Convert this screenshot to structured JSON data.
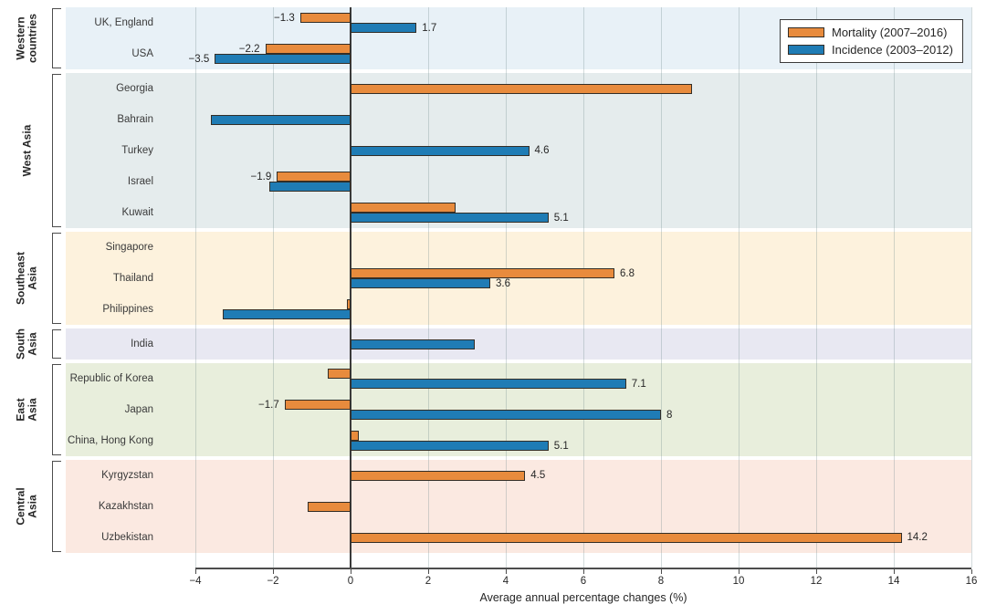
{
  "chart_data": {
    "type": "bar",
    "orientation": "horizontal",
    "xlabel": "Average annual percentage changes (%)",
    "xlim": [
      -4,
      16
    ],
    "xticks": [
      -4,
      -2,
      0,
      2,
      4,
      6,
      8,
      10,
      12,
      14,
      16
    ],
    "xtick_labels": [
      "−4",
      "−2",
      "0",
      "2",
      "4",
      "6",
      "8",
      "10",
      "12",
      "14",
      "16"
    ],
    "grid": "vertical-on",
    "legend_position": "top-right",
    "series_meta": {
      "mortality": {
        "name": "Mortality (2007–2016)",
        "color": "#e88b3d"
      },
      "incidence": {
        "name": "Incidence (2003–2012)",
        "color": "#1f7cb5"
      }
    },
    "regions": [
      {
        "name": "Western countries",
        "label_lines": "Western\ncountries",
        "band_color": "#e8f1f7",
        "rows": [
          {
            "country": "UK, England",
            "mortality": -1.3,
            "incidence": 1.7,
            "mortality_label": "−1.3",
            "incidence_label": "1.7"
          },
          {
            "country": "USA",
            "mortality": -2.2,
            "incidence": -3.5,
            "mortality_label": "−2.2",
            "incidence_label": "−3.5"
          }
        ]
      },
      {
        "name": "West Asia",
        "label_lines": "West Asia",
        "band_color": "#e5eced",
        "rows": [
          {
            "country": "Georgia",
            "mortality": 8.8,
            "incidence": null
          },
          {
            "country": "Bahrain",
            "mortality": null,
            "incidence": -3.6
          },
          {
            "country": "Turkey",
            "mortality": null,
            "incidence": 4.6,
            "incidence_label": "4.6"
          },
          {
            "country": "Israel",
            "mortality": -1.9,
            "incidence": -2.1,
            "mortality_label": "−1.9"
          },
          {
            "country": "Kuwait",
            "mortality": 2.7,
            "incidence": 5.1,
            "incidence_label": "5.1"
          }
        ]
      },
      {
        "name": "Southeast Asia",
        "label_lines": "Southeast\nAsia",
        "band_color": "#fdf2dd",
        "rows": [
          {
            "country": "Singapore",
            "mortality": null,
            "incidence": null
          },
          {
            "country": "Thailand",
            "mortality": 6.8,
            "incidence": 3.6,
            "mortality_label": "6.8",
            "incidence_label": "3.6"
          },
          {
            "country": "Philippines",
            "mortality": -0.1,
            "incidence": -3.3
          }
        ]
      },
      {
        "name": "South Asia",
        "label_lines": "South\nAsia",
        "band_color": "#e8e8f2",
        "rows": [
          {
            "country": "India",
            "mortality": null,
            "incidence": 3.2
          }
        ]
      },
      {
        "name": "East Asia",
        "label_lines": "East\nAsia",
        "band_color": "#e8eedc",
        "rows": [
          {
            "country": "Republic of Korea",
            "mortality": -0.6,
            "incidence": 7.1,
            "incidence_label": "7.1"
          },
          {
            "country": "Japan",
            "mortality": -1.7,
            "incidence": 8,
            "mortality_label": "−1.7",
            "incidence_label": "8"
          },
          {
            "country": "China, Hong Kong",
            "mortality": 0.2,
            "incidence": 5.1,
            "incidence_label": "5.1"
          }
        ]
      },
      {
        "name": "Central Asia",
        "label_lines": "Central\nAsia",
        "band_color": "#fbe9e1",
        "rows": [
          {
            "country": "Kyrgyzstan",
            "mortality": 4.5,
            "incidence": null,
            "mortality_label": "4.5"
          },
          {
            "country": "Kazakhstan",
            "mortality": -1.1,
            "incidence": null
          },
          {
            "country": "Uzbekistan",
            "mortality": 14.2,
            "incidence": null,
            "mortality_label": "14.2"
          }
        ]
      }
    ]
  }
}
